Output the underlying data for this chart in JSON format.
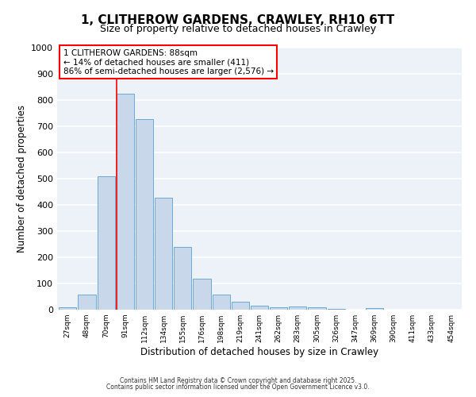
{
  "title": "1, CLITHEROW GARDENS, CRAWLEY, RH10 6TT",
  "subtitle": "Size of property relative to detached houses in Crawley",
  "xlabel": "Distribution of detached houses by size in Crawley",
  "ylabel": "Number of detached properties",
  "bar_color": "#c8d8ea",
  "bar_edge_color": "#6aaad4",
  "background_color": "#edf2f9",
  "grid_color": "#ffffff",
  "bin_labels": [
    "27sqm",
    "48sqm",
    "70sqm",
    "91sqm",
    "112sqm",
    "134sqm",
    "155sqm",
    "176sqm",
    "198sqm",
    "219sqm",
    "241sqm",
    "262sqm",
    "283sqm",
    "305sqm",
    "326sqm",
    "347sqm",
    "369sqm",
    "390sqm",
    "411sqm",
    "433sqm",
    "454sqm"
  ],
  "bar_values": [
    8,
    58,
    510,
    825,
    728,
    428,
    238,
    118,
    57,
    30,
    14,
    10,
    12,
    8,
    4,
    0,
    5,
    0,
    0,
    0,
    0
  ],
  "vline_bin_index": 3,
  "annotation_title": "1 CLITHEROW GARDENS: 88sqm",
  "annotation_line1": "← 14% of detached houses are smaller (411)",
  "annotation_line2": "86% of semi-detached houses are larger (2,576) →",
  "ylim": [
    0,
    1000
  ],
  "yticks": [
    0,
    100,
    200,
    300,
    400,
    500,
    600,
    700,
    800,
    900,
    1000
  ],
  "footer1": "Contains HM Land Registry data © Crown copyright and database right 2025.",
  "footer2": "Contains public sector information licensed under the Open Government Licence v3.0.",
  "title_fontsize": 11,
  "subtitle_fontsize": 9,
  "annotation_box_edge_color": "red",
  "vline_color": "red",
  "annotation_fontsize": 7.5
}
